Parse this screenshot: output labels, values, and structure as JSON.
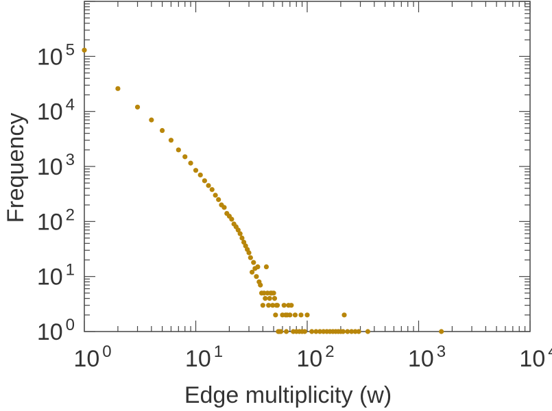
{
  "chart_data": {
    "type": "scatter",
    "xlabel": "Edge multiplicity (w)",
    "ylabel": "Frequency",
    "xscale": "log",
    "yscale": "log",
    "xlim": [
      1,
      10000
    ],
    "ylim": [
      1,
      1000000
    ],
    "grid": false,
    "legend": "none",
    "marker_color": "#b8860b",
    "x_ticks": [
      {
        "base": "10",
        "exp": "0",
        "value": 1
      },
      {
        "base": "10",
        "exp": "1",
        "value": 10
      },
      {
        "base": "10",
        "exp": "2",
        "value": 100
      },
      {
        "base": "10",
        "exp": "3",
        "value": 1000
      },
      {
        "base": "10",
        "exp": "4",
        "value": 10000
      }
    ],
    "y_ticks": [
      {
        "base": "10",
        "exp": "0",
        "value": 1
      },
      {
        "base": "10",
        "exp": "1",
        "value": 10
      },
      {
        "base": "10",
        "exp": "2",
        "value": 100
      },
      {
        "base": "10",
        "exp": "3",
        "value": 1000
      },
      {
        "base": "10",
        "exp": "4",
        "value": 10000
      },
      {
        "base": "10",
        "exp": "5",
        "value": 100000
      }
    ],
    "points": [
      [
        1,
        130000
      ],
      [
        2,
        26000
      ],
      [
        3,
        12000
      ],
      [
        4,
        7000
      ],
      [
        5,
        4500
      ],
      [
        6,
        3000
      ],
      [
        7,
        2000
      ],
      [
        8,
        1500
      ],
      [
        9,
        1150
      ],
      [
        10,
        850
      ],
      [
        11,
        700
      ],
      [
        12,
        550
      ],
      [
        13,
        450
      ],
      [
        14,
        380
      ],
      [
        15,
        300
      ],
      [
        16,
        250
      ],
      [
        17,
        200
      ],
      [
        18,
        180
      ],
      [
        19,
        140
      ],
      [
        20,
        125
      ],
      [
        21,
        110
      ],
      [
        22,
        90
      ],
      [
        23,
        80
      ],
      [
        24,
        70
      ],
      [
        25,
        60
      ],
      [
        26,
        50
      ],
      [
        27,
        42
      ],
      [
        28,
        36
      ],
      [
        29,
        31
      ],
      [
        30,
        27
      ],
      [
        31,
        22
      ],
      [
        32,
        12
      ],
      [
        33,
        18
      ],
      [
        34,
        14
      ],
      [
        35,
        10
      ],
      [
        36,
        15
      ],
      [
        37,
        8
      ],
      [
        38,
        7
      ],
      [
        39,
        5
      ],
      [
        40,
        3
      ],
      [
        41,
        5
      ],
      [
        42,
        4
      ],
      [
        43,
        15
      ],
      [
        44,
        5
      ],
      [
        45,
        3
      ],
      [
        46,
        4
      ],
      [
        47,
        5
      ],
      [
        48,
        5
      ],
      [
        49,
        3
      ],
      [
        50,
        5
      ],
      [
        51,
        4
      ],
      [
        52,
        2
      ],
      [
        53,
        3
      ],
      [
        54,
        3
      ],
      [
        55,
        1
      ],
      [
        56,
        1
      ],
      [
        58,
        1
      ],
      [
        60,
        2
      ],
      [
        62,
        3
      ],
      [
        64,
        2
      ],
      [
        65,
        1
      ],
      [
        66,
        2
      ],
      [
        68,
        3
      ],
      [
        70,
        2
      ],
      [
        72,
        3
      ],
      [
        75,
        1
      ],
      [
        78,
        2
      ],
      [
        80,
        1
      ],
      [
        85,
        1
      ],
      [
        88,
        2
      ],
      [
        90,
        1
      ],
      [
        95,
        1
      ],
      [
        100,
        2
      ],
      [
        110,
        1
      ],
      [
        120,
        1
      ],
      [
        130,
        1
      ],
      [
        140,
        1
      ],
      [
        150,
        1
      ],
      [
        160,
        1
      ],
      [
        170,
        1
      ],
      [
        180,
        1
      ],
      [
        190,
        1
      ],
      [
        200,
        1
      ],
      [
        210,
        1
      ],
      [
        215,
        2
      ],
      [
        230,
        1
      ],
      [
        250,
        1
      ],
      [
        270,
        1
      ],
      [
        290,
        1
      ],
      [
        350,
        1
      ],
      [
        1600,
        1
      ]
    ]
  }
}
